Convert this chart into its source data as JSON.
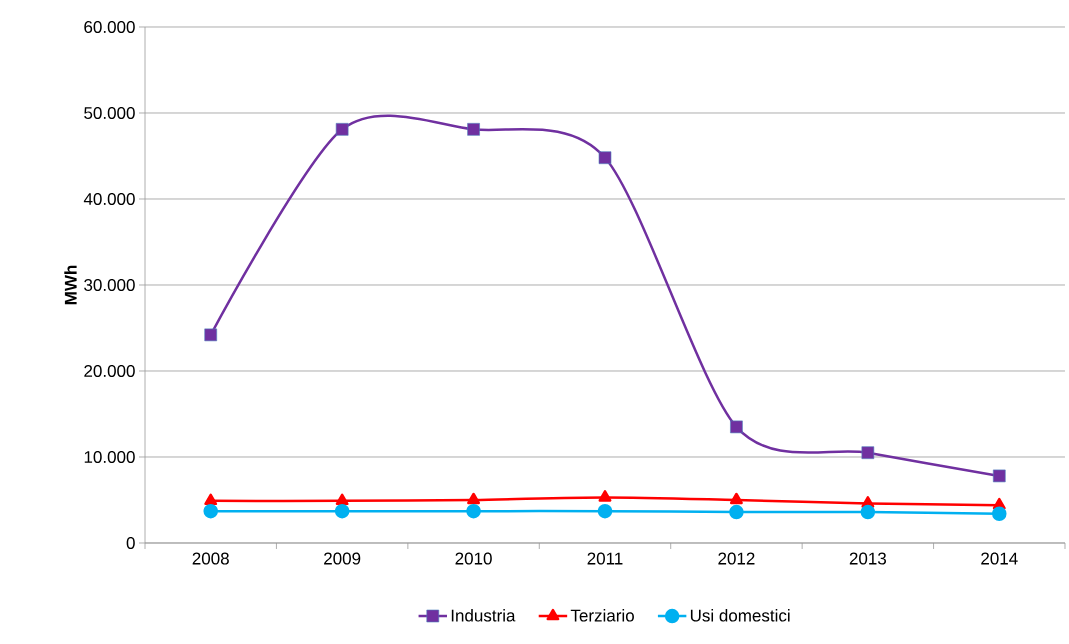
{
  "chart_data": {
    "type": "line",
    "ylabel": "MWh",
    "categories": [
      "2008",
      "2009",
      "2010",
      "2011",
      "2012",
      "2013",
      "2014"
    ],
    "series": [
      {
        "name": "Industria",
        "color": "#7030a0",
        "marker": "square",
        "values": [
          24200,
          48100,
          48100,
          44800,
          13500,
          10500,
          7800
        ]
      },
      {
        "name": "Terziario",
        "color": "#ff0000",
        "marker": "triangle",
        "values": [
          4900,
          4900,
          5000,
          5300,
          5000,
          4600,
          4400
        ]
      },
      {
        "name": "Usi domestici",
        "color": "#00b0f0",
        "marker": "circle",
        "values": [
          3700,
          3700,
          3700,
          3700,
          3600,
          3600,
          3400
        ]
      }
    ],
    "ylim": [
      0,
      60000
    ],
    "yticks": [
      {
        "value": 0,
        "label": "0"
      },
      {
        "value": 10000,
        "label": "10.000"
      },
      {
        "value": 20000,
        "label": "20.000"
      },
      {
        "value": 30000,
        "label": "30.000"
      },
      {
        "value": 40000,
        "label": "40.000"
      },
      {
        "value": 50000,
        "label": "50.000"
      },
      {
        "value": 60000,
        "label": "60.000"
      }
    ],
    "grid": "y",
    "legend": "bottom"
  }
}
